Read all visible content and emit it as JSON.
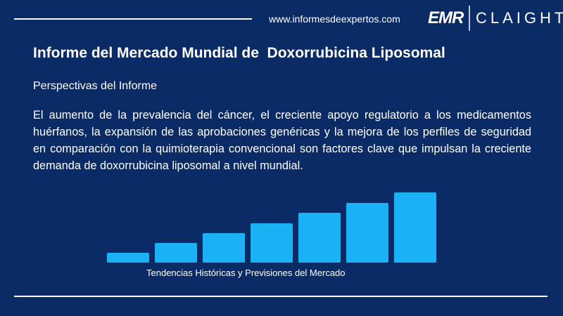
{
  "header": {
    "url": "www.informesdeexpertos.com",
    "logo_left": "EMR",
    "logo_right": "CLAIGHT"
  },
  "title": "Informe del Mercado Mundial de  Doxorrubicina Liposomal",
  "subtitle": "Perspectivas del Informe",
  "paragraph": "El aumento de la prevalencia del cáncer, el creciente apoyo regulatorio a los medicamentos huérfanos, la expansión de las aprobaciones genéricas y la mejora de los perfiles de seguridad en comparación con la quimioterapia convencional son factores clave que impulsan la creciente demanda de doxorrubicina liposomal a nivel mundial.",
  "caption": "Tendencias Históricas y Previsiones del Mercado"
}
